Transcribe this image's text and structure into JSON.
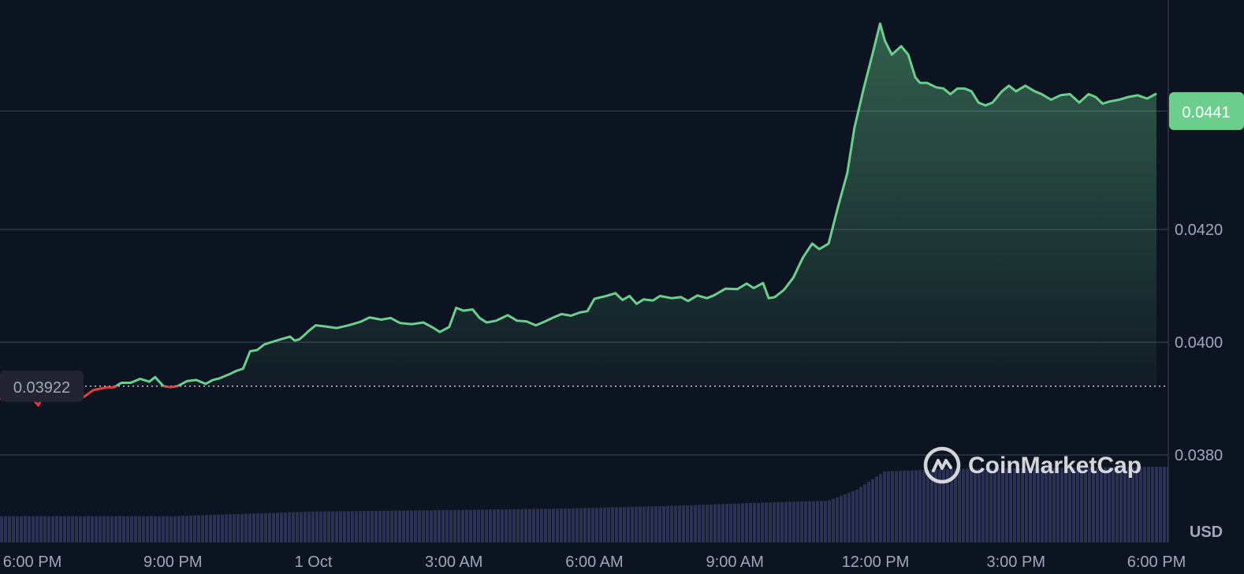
{
  "chart_data": {
    "type": "area",
    "currency_label": "USD",
    "y_ticks": [
      "0.0380",
      "0.0400",
      "0.0420"
    ],
    "y_tick_values": [
      0.038,
      0.04,
      0.042
    ],
    "ylim": [
      0.03656,
      0.04565
    ],
    "x_ticks": [
      "6:00 PM",
      "9:00 PM",
      "1 Oct",
      "3:00 AM",
      "6:00 AM",
      "9:00 AM",
      "12:00 PM",
      "3:00 PM",
      "6:00 PM"
    ],
    "x_tick_hours": [
      0,
      3,
      6,
      9,
      12,
      15,
      18,
      21,
      24
    ],
    "xlim_hours": [
      0.0,
      24.0
    ],
    "reference_price": 0.03922,
    "reference_label": "0.03922",
    "current_price": 0.0441,
    "current_label": "0.0441",
    "grid": true,
    "colors": {
      "background": "#0d1421",
      "up": "#6ccf8e",
      "down": "#ea3943",
      "grid": "#323546",
      "volume": "#2b3153",
      "axis_text": "#a1a7bb"
    },
    "price_points": [
      [
        0.0,
        0.039
      ],
      [
        0.13,
        0.03888
      ],
      [
        0.2,
        0.039
      ],
      [
        0.35,
        0.03905
      ],
      [
        0.5,
        0.0391
      ],
      [
        0.7,
        0.03908
      ],
      [
        0.9,
        0.03905
      ],
      [
        1.1,
        0.03903
      ],
      [
        1.3,
        0.03915
      ],
      [
        1.6,
        0.0392
      ],
      [
        1.75,
        0.0392
      ],
      [
        1.9,
        0.03928
      ],
      [
        2.1,
        0.03928
      ],
      [
        2.3,
        0.03935
      ],
      [
        2.5,
        0.0393
      ],
      [
        2.62,
        0.03938
      ],
      [
        2.8,
        0.03922
      ],
      [
        2.95,
        0.0392
      ],
      [
        3.1,
        0.03922
      ],
      [
        3.3,
        0.03931
      ],
      [
        3.5,
        0.03933
      ],
      [
        3.7,
        0.03926
      ],
      [
        3.85,
        0.03933
      ],
      [
        4.0,
        0.03936
      ],
      [
        4.2,
        0.03943
      ],
      [
        4.35,
        0.03949
      ],
      [
        4.5,
        0.03953
      ],
      [
        4.65,
        0.03984
      ],
      [
        4.8,
        0.03986
      ],
      [
        4.95,
        0.03996
      ],
      [
        5.1,
        0.04
      ],
      [
        5.3,
        0.04005
      ],
      [
        5.5,
        0.0401
      ],
      [
        5.6,
        0.04003
      ],
      [
        5.7,
        0.04005
      ],
      [
        5.8,
        0.04012
      ],
      [
        5.9,
        0.0402
      ],
      [
        6.05,
        0.0403
      ],
      [
        6.25,
        0.04028
      ],
      [
        6.5,
        0.04025
      ],
      [
        6.75,
        0.0403
      ],
      [
        7.0,
        0.04036
      ],
      [
        7.2,
        0.04044
      ],
      [
        7.45,
        0.0404
      ],
      [
        7.65,
        0.04043
      ],
      [
        7.85,
        0.04034
      ],
      [
        8.1,
        0.04032
      ],
      [
        8.35,
        0.04035
      ],
      [
        8.55,
        0.04026
      ],
      [
        8.7,
        0.04018
      ],
      [
        8.9,
        0.04027
      ],
      [
        9.05,
        0.04061
      ],
      [
        9.2,
        0.04056
      ],
      [
        9.4,
        0.04058
      ],
      [
        9.55,
        0.04043
      ],
      [
        9.7,
        0.04035
      ],
      [
        9.9,
        0.04038
      ],
      [
        10.15,
        0.04048
      ],
      [
        10.35,
        0.04038
      ],
      [
        10.55,
        0.04037
      ],
      [
        10.75,
        0.0403
      ],
      [
        10.95,
        0.04037
      ],
      [
        11.1,
        0.04043
      ],
      [
        11.3,
        0.0405
      ],
      [
        11.5,
        0.04047
      ],
      [
        11.7,
        0.04053
      ],
      [
        11.85,
        0.04055
      ],
      [
        12.0,
        0.04077
      ],
      [
        12.25,
        0.04082
      ],
      [
        12.45,
        0.04087
      ],
      [
        12.6,
        0.04075
      ],
      [
        12.75,
        0.04082
      ],
      [
        12.9,
        0.04068
      ],
      [
        13.05,
        0.04076
      ],
      [
        13.25,
        0.04074
      ],
      [
        13.4,
        0.04082
      ],
      [
        13.65,
        0.04078
      ],
      [
        13.85,
        0.0408
      ],
      [
        14.0,
        0.04073
      ],
      [
        14.2,
        0.04083
      ],
      [
        14.4,
        0.04078
      ],
      [
        14.55,
        0.04083
      ],
      [
        14.8,
        0.04095
      ],
      [
        15.05,
        0.04094
      ],
      [
        15.25,
        0.04104
      ],
      [
        15.4,
        0.04096
      ],
      [
        15.6,
        0.04105
      ],
      [
        15.72,
        0.04078
      ],
      [
        15.85,
        0.0408
      ],
      [
        16.05,
        0.04093
      ],
      [
        16.25,
        0.04115
      ],
      [
        16.45,
        0.0415
      ],
      [
        16.65,
        0.04175
      ],
      [
        16.8,
        0.04165
      ],
      [
        17.0,
        0.04175
      ],
      [
        17.2,
        0.0424
      ],
      [
        17.4,
        0.043
      ],
      [
        17.55,
        0.0438
      ],
      [
        17.75,
        0.0445
      ],
      [
        17.95,
        0.04515
      ],
      [
        18.1,
        0.04565
      ],
      [
        18.2,
        0.04535
      ],
      [
        18.35,
        0.0451
      ],
      [
        18.55,
        0.04525
      ],
      [
        18.7,
        0.0451
      ],
      [
        18.85,
        0.0447
      ],
      [
        18.95,
        0.0446
      ],
      [
        19.1,
        0.0446
      ],
      [
        19.3,
        0.04452
      ],
      [
        19.45,
        0.0445
      ],
      [
        19.6,
        0.0444
      ],
      [
        19.75,
        0.0445
      ],
      [
        19.9,
        0.0445
      ],
      [
        20.05,
        0.04445
      ],
      [
        20.2,
        0.04425
      ],
      [
        20.35,
        0.0442
      ],
      [
        20.5,
        0.04425
      ],
      [
        20.7,
        0.04445
      ],
      [
        20.85,
        0.04455
      ],
      [
        21.0,
        0.04445
      ],
      [
        21.2,
        0.04455
      ],
      [
        21.4,
        0.04445
      ],
      [
        21.55,
        0.0444
      ],
      [
        21.75,
        0.0443
      ],
      [
        21.95,
        0.04438
      ],
      [
        22.15,
        0.0444
      ],
      [
        22.35,
        0.04425
      ],
      [
        22.55,
        0.0444
      ],
      [
        22.7,
        0.04435
      ],
      [
        22.85,
        0.04423
      ],
      [
        23.0,
        0.04427
      ],
      [
        23.2,
        0.0443
      ],
      [
        23.4,
        0.04435
      ],
      [
        23.6,
        0.04438
      ],
      [
        23.8,
        0.04432
      ],
      [
        24.0,
        0.04441
      ]
    ],
    "volume_relative_points": [
      [
        0.0,
        0.34
      ],
      [
        3.0,
        0.34
      ],
      [
        6.0,
        0.4
      ],
      [
        9.0,
        0.42
      ],
      [
        11.5,
        0.44
      ],
      [
        14.0,
        0.48
      ],
      [
        15.8,
        0.52
      ],
      [
        17.0,
        0.54
      ],
      [
        17.6,
        0.68
      ],
      [
        18.2,
        0.92
      ],
      [
        19.5,
        0.95
      ],
      [
        24.0,
        0.98
      ]
    ]
  },
  "watermark": {
    "brand": "CoinMarketCap"
  }
}
